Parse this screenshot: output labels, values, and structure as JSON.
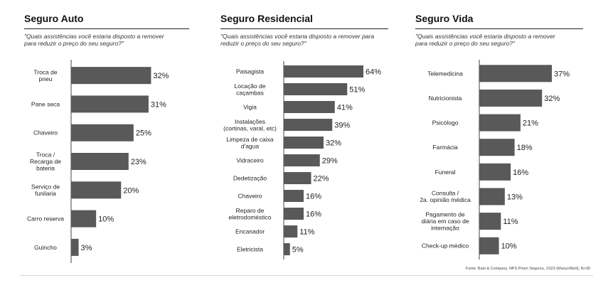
{
  "chart_data": [
    {
      "type": "bar",
      "orientation": "horizontal",
      "title": "Seguro Auto",
      "subtitle": "\"Quais assistências você estaria disposto a remover para reduzir o preço do seu seguro?\"",
      "categories": [
        [
          "Troca de",
          "pneu"
        ],
        [
          "Pane seca"
        ],
        [
          "Chaveiro"
        ],
        [
          "Troca /",
          "Recarga de",
          "bateria"
        ],
        [
          "Serviço de",
          "funilaria"
        ],
        [
          "Carro reserva"
        ],
        [
          "Guincho"
        ]
      ],
      "values": [
        32,
        31,
        25,
        23,
        20,
        10,
        3
      ],
      "value_labels": [
        "32%",
        "31%",
        "25%",
        "23%",
        "20%",
        "10%",
        "3%"
      ],
      "unit": "%",
      "xlim": [
        0,
        37
      ],
      "bar_color": "#595959"
    },
    {
      "type": "bar",
      "orientation": "horizontal",
      "title": "Seguro Residencial",
      "subtitle": "\"Quais assistências você estaria disposto a remover para reduzir o preço do seu seguro?\"",
      "categories": [
        [
          "Paisagista"
        ],
        [
          "Locação de",
          "caçambas"
        ],
        [
          "Vigia"
        ],
        [
          "Instalações",
          "(cortinas, varal, etc)"
        ],
        [
          "Limpeza de caixa",
          "d'agua"
        ],
        [
          "Vidraceiro"
        ],
        [
          "Dedetização"
        ],
        [
          "Chaveiro"
        ],
        [
          "Reparo de",
          "eletrodoméstico"
        ],
        [
          "Encanador"
        ],
        [
          "Eletricista"
        ]
      ],
      "values": [
        64,
        51,
        41,
        39,
        32,
        29,
        22,
        16,
        16,
        11,
        5
      ],
      "value_labels": [
        "64%",
        "51%",
        "41%",
        "39%",
        "32%",
        "29%",
        "22%",
        "16%",
        "16%",
        "11%",
        "5%"
      ],
      "unit": "%",
      "xlim": [
        0,
        64
      ],
      "bar_color": "#595959"
    },
    {
      "type": "bar",
      "orientation": "horizontal",
      "title": "Seguro Vida",
      "subtitle": "\"Quais assistências você estaria disposto a remover para reduzir o preço do seu seguro?\"",
      "categories": [
        [
          "Telemedicina"
        ],
        [
          "Nutricionista"
        ],
        [
          "Psicólogo"
        ],
        [
          "Farmácia"
        ],
        [
          "Funeral"
        ],
        [
          "Consulta /",
          "2a. opinião médica"
        ],
        [
          "Pagamento de",
          "diária em caso de",
          "internação"
        ],
        [
          "Check-up médico"
        ]
      ],
      "values": [
        37,
        32,
        21,
        18,
        16,
        13,
        11,
        10
      ],
      "value_labels": [
        "37%",
        "32%",
        "21%",
        "18%",
        "16%",
        "13%",
        "11%",
        "10%"
      ],
      "unit": "%",
      "xlim": [
        0,
        37
      ],
      "bar_color": "#595959",
      "marker": "*",
      "marker_color": "#d32020"
    }
  ],
  "footer": "Fonte: Bain & Company, NPS Prism Seguros, 1S23 (Março/Abril), N>30"
}
